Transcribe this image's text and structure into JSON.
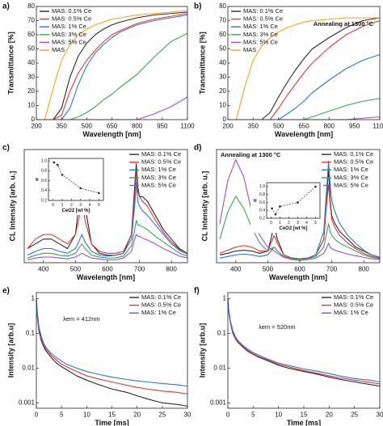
{
  "chart_data": [
    {
      "type": "line",
      "panel_label": "a)",
      "xlabel": "Wavelength [nm]",
      "ylabel": "Transmittance [%]",
      "xlim": [
        200,
        1100
      ],
      "xticks": [
        200,
        350,
        500,
        650,
        800,
        950,
        1100
      ],
      "ylim": [
        0,
        80
      ],
      "yticks": [
        0,
        10,
        20,
        30,
        40,
        50,
        60,
        70,
        80
      ],
      "legend": "upper left",
      "x": [
        200,
        250,
        300,
        350,
        400,
        450,
        500,
        550,
        600,
        650,
        700,
        800,
        900,
        1000,
        1100
      ],
      "series": [
        {
          "name": "MAS: 0.1% Ce",
          "color": "#2b2b2b",
          "values": [
            0,
            0,
            0,
            8,
            30,
            45,
            54,
            60,
            64,
            67,
            69,
            72,
            74,
            75,
            76
          ]
        },
        {
          "name": "MAS: 0.5% Ce",
          "color": "#e03a33",
          "values": [
            0,
            0,
            0,
            3,
            20,
            33,
            42,
            49,
            55,
            60,
            63,
            68,
            71,
            73,
            75
          ]
        },
        {
          "name": "MAS: 1% Ce",
          "color": "#2b78d4",
          "values": [
            0,
            0,
            0,
            0,
            8,
            25,
            38,
            47,
            53,
            58,
            62,
            67,
            70,
            72,
            74
          ]
        },
        {
          "name": "MAS: 3% Ce",
          "color": "#35a852",
          "values": [
            0,
            0,
            0,
            0,
            0,
            2,
            5,
            9,
            14,
            18,
            23,
            32,
            44,
            55,
            61
          ]
        },
        {
          "name": "MAS: 5% Ce",
          "color": "#9b4fd8",
          "values": [
            0,
            0,
            0,
            0,
            0,
            0,
            0,
            0,
            0,
            0,
            0,
            0,
            4,
            9,
            16
          ]
        },
        {
          "name": "MAS",
          "color": "#f2a51a",
          "values": [
            0,
            0,
            22,
            42,
            53,
            60,
            64,
            67,
            69,
            71,
            72,
            74,
            75,
            76,
            77
          ]
        }
      ]
    },
    {
      "type": "line",
      "panel_label": "b)",
      "annotation": "Annealing at 1300 °C",
      "xlabel": "Wavelength [nm]",
      "ylabel": "Transmittance [%]",
      "xlim": [
        200,
        1100
      ],
      "xticks": [
        200,
        350,
        500,
        650,
        800,
        950,
        1100
      ],
      "ylim": [
        0,
        80
      ],
      "yticks": [
        0,
        10,
        20,
        30,
        40,
        50,
        60,
        70,
        80
      ],
      "legend": "upper left",
      "x": [
        200,
        250,
        300,
        350,
        400,
        450,
        500,
        550,
        600,
        650,
        700,
        800,
        900,
        1000,
        1100
      ],
      "series": [
        {
          "name": "MAS: 0.1% Ce",
          "color": "#2b2b2b",
          "values": [
            0,
            0,
            0,
            0,
            0,
            5,
            16,
            26,
            35,
            43,
            50,
            58,
            65,
            70,
            72
          ]
        },
        {
          "name": "MAS: 0.5% Ce",
          "color": "#e03a33",
          "values": [
            0,
            0,
            0,
            0,
            0,
            0,
            8,
            17,
            25,
            33,
            40,
            51,
            60,
            66,
            70
          ]
        },
        {
          "name": "MAS: 1% Ce",
          "color": "#2b78d4",
          "values": [
            0,
            0,
            0,
            0,
            0,
            0,
            0,
            4,
            8,
            13,
            19,
            28,
            36,
            42,
            46
          ]
        },
        {
          "name": "MAS: 3% Ce",
          "color": "#35a852",
          "values": [
            0,
            0,
            0,
            0,
            0,
            0,
            0,
            0,
            0,
            0,
            2,
            6,
            10,
            13,
            15
          ]
        },
        {
          "name": "MAS: 5% Ce",
          "color": "#9b4fd8",
          "values": [
            0,
            0,
            0,
            0,
            0,
            0,
            0,
            0,
            0,
            0,
            0,
            0,
            0,
            1,
            2
          ]
        },
        {
          "name": "MAS",
          "color": "#f2a51a",
          "values": [
            0,
            0,
            23,
            42,
            52,
            58,
            62,
            65,
            67,
            69,
            70,
            71,
            72,
            72,
            72
          ]
        }
      ]
    },
    {
      "type": "line",
      "panel_label": "c)",
      "xlabel": "Wavelength [nm]",
      "ylabel": "CL Intensity [arb. u.]",
      "xlim": [
        340,
        850
      ],
      "xticks": [
        400,
        500,
        600,
        700,
        800
      ],
      "ylim": [
        0,
        12
      ],
      "legend": "upper right",
      "x": [
        350,
        375,
        400,
        425,
        450,
        475,
        500,
        510,
        520,
        530,
        550,
        575,
        600,
        625,
        650,
        675,
        685,
        690,
        695,
        700,
        710,
        725,
        750,
        775,
        800,
        825,
        850
      ],
      "series": [
        {
          "name": "MAS: 0.1% Ce",
          "color": "#2b2b2b",
          "values": [
            1.5,
            2,
            2.5,
            2.5,
            2,
            1.5,
            3,
            6,
            9,
            6,
            2,
            1,
            0.8,
            0.8,
            1,
            3,
            8,
            10.5,
            8,
            7,
            7,
            6.5,
            5,
            3.5,
            2.5,
            1.5,
            1
          ]
        },
        {
          "name": "MAS: 0.5% Ce",
          "color": "#e03a33",
          "values": [
            1.5,
            2.5,
            3,
            3,
            2.5,
            2,
            3,
            4.5,
            6.5,
            4.5,
            2,
            1.2,
            1,
            1,
            1.2,
            3,
            7,
            9.5,
            7.5,
            7,
            6.5,
            6,
            4.5,
            3.2,
            2.2,
            1.4,
            1
          ]
        },
        {
          "name": "MAS: 1% Ce",
          "color": "#2b78d4",
          "values": [
            0.8,
            1.2,
            1.5,
            1.5,
            1.2,
            1,
            1.5,
            2.2,
            3,
            2.2,
            1.2,
            0.8,
            0.7,
            0.8,
            1,
            2.5,
            6,
            8.5,
            6.5,
            6,
            5.5,
            5,
            4,
            3,
            2,
            1.3,
            0.9
          ]
        },
        {
          "name": "MAS: 3% Ce",
          "color": "#35a852",
          "values": [
            0.5,
            0.8,
            1,
            1,
            0.8,
            0.7,
            1,
            1.5,
            2,
            1.5,
            0.8,
            0.6,
            0.5,
            0.5,
            0.7,
            1.8,
            3.5,
            4.5,
            4,
            4,
            3.8,
            3.5,
            2.8,
            2.2,
            1.6,
            1,
            0.7
          ]
        },
        {
          "name": "MAS: 5% Ce",
          "color": "#9b4fd8",
          "values": [
            0.3,
            0.5,
            0.6,
            0.6,
            0.5,
            0.4,
            0.6,
            0.8,
            1,
            0.8,
            0.5,
            0.4,
            0.3,
            0.3,
            0.5,
            1.2,
            2.5,
            3,
            2.8,
            2.8,
            2.6,
            2.4,
            2,
            1.5,
            1.1,
            0.7,
            0.5
          ]
        }
      ]
    },
    {
      "type": "line",
      "inset": true,
      "markers": true,
      "line_style": "dashed",
      "xlabel": "CeO2 [wt %]",
      "ylabel": "α",
      "xlim": [
        -0.5,
        5.5
      ],
      "xticks": [
        0,
        1,
        2,
        3,
        4,
        5
      ],
      "ylim": [
        0.2,
        1.05
      ],
      "yticks": [
        0.2,
        0.4,
        0.6,
        0.8,
        {
          "value": 1,
          "label": "1.0"
        }
      ],
      "x": [
        0.1,
        0.5,
        1,
        3,
        5
      ],
      "values": [
        0.97,
        0.92,
        0.72,
        0.45,
        0.35
      ],
      "color": "#2b2b2b"
    },
    {
      "type": "line",
      "panel_label": "d)",
      "annotation": "Annealing at 1300 °C",
      "xlabel": "Wavelength [nm]",
      "ylabel": "CL Intensity [arb. u.]",
      "xlim": [
        340,
        850
      ],
      "xticks": [
        400,
        500,
        600,
        700,
        800
      ],
      "ylim": [
        0,
        14.5
      ],
      "legend": "upper right",
      "x": [
        350,
        375,
        400,
        425,
        450,
        475,
        500,
        510,
        520,
        530,
        550,
        575,
        600,
        625,
        650,
        675,
        685,
        690,
        695,
        700,
        710,
        725,
        750,
        775,
        800,
        825,
        850
      ],
      "series": [
        {
          "name": "MAS: 0.1% Ce",
          "color": "#2b2b2b",
          "values": [
            1,
            1.2,
            1.5,
            1.6,
            1.5,
            1.2,
            1.5,
            3,
            5,
            3,
            1,
            0.6,
            0.5,
            0.6,
            1,
            3,
            9,
            12,
            8,
            6,
            5,
            4,
            3,
            2,
            1.5,
            1,
            0.7
          ]
        },
        {
          "name": "MAS: 0.5% Ce",
          "color": "#e03a33",
          "values": [
            1.2,
            1.6,
            2,
            2.2,
            2,
            1.5,
            1.5,
            2.5,
            3.5,
            2.5,
            1,
            0.6,
            0.5,
            0.6,
            1,
            3,
            8,
            10,
            7.5,
            5.5,
            4.5,
            3.5,
            2.5,
            1.8,
            1.2,
            0.8,
            0.6
          ]
        },
        {
          "name": "MAS: 1% Ce",
          "color": "#2b78d4",
          "values": [
            0.6,
            0.8,
            1,
            1.1,
            1,
            0.8,
            1,
            1.5,
            2,
            1.5,
            0.8,
            0.5,
            0.4,
            0.5,
            1,
            4,
            10,
            13,
            10,
            8,
            6.5,
            5,
            3.5,
            2.5,
            1.6,
            1,
            0.7
          ]
        },
        {
          "name": "MAS: 3% Ce",
          "color": "#35a852",
          "values": [
            3,
            6.5,
            8.5,
            7,
            4.5,
            2.5,
            1.5,
            1.8,
            2,
            1.5,
            0.8,
            0.5,
            0.4,
            0.5,
            0.8,
            2,
            4,
            5,
            4,
            3.5,
            3,
            2.5,
            2,
            1.5,
            1,
            0.7,
            0.5
          ]
        },
        {
          "name": "MAS: 5% Ce",
          "color": "#9b4fd8",
          "values": [
            5,
            10.5,
            13.2,
            11,
            6.5,
            3.5,
            2,
            1.8,
            1.5,
            1.2,
            0.7,
            0.4,
            0.3,
            0.4,
            0.6,
            1.2,
            2,
            2.5,
            2,
            1.8,
            1.6,
            1.4,
            1.1,
            0.9,
            0.7,
            0.5,
            0.4
          ]
        }
      ]
    },
    {
      "type": "line",
      "inset": true,
      "markers": true,
      "line_style": "dashed",
      "xlabel": "CeO2 [wt %]",
      "ylabel": "α",
      "xlim": [
        -0.5,
        5.5
      ],
      "xticks": [
        0,
        1,
        2,
        3,
        4,
        5
      ],
      "ylim": [
        0.2,
        1.1
      ],
      "yticks": [
        0.2,
        0.4,
        0.6,
        0.8,
        {
          "value": 1,
          "label": "1.0"
        }
      ],
      "x": [
        0.1,
        0.5,
        1,
        3,
        5
      ],
      "values": [
        0.45,
        0.3,
        0.5,
        0.6,
        1.0
      ],
      "color": "#2b2b2b"
    },
    {
      "type": "line",
      "panel_label": "e)",
      "annotation": "λem = 412nm",
      "xlabel": "Time [ms]",
      "ylabel": "Intensity [arb.u]",
      "xlim": [
        0,
        30
      ],
      "xticks": [
        0,
        5,
        10,
        15,
        20,
        25,
        30
      ],
      "ylim": [
        0.0007,
        1.5
      ],
      "yticks": [
        0.001,
        0.01,
        0.1,
        1
      ],
      "log_y": true,
      "legend": "upper right",
      "x": [
        0,
        0.2,
        0.5,
        1,
        1.5,
        2,
        3,
        4,
        5,
        6,
        8,
        10,
        12,
        15,
        18,
        20,
        22,
        25,
        28,
        30
      ],
      "series": [
        {
          "name": "MAS: 0.1% Ce",
          "color": "#2b2b2b",
          "values": [
            1,
            0.3,
            0.12,
            0.06,
            0.04,
            0.03,
            0.02,
            0.014,
            0.011,
            0.009,
            0.006,
            0.0045,
            0.0035,
            0.0025,
            0.002,
            0.0016,
            0.0013,
            0.001,
            0.0009,
            0.0008
          ]
        },
        {
          "name": "MAS: 0.5% Ce",
          "color": "#e03a33",
          "values": [
            1,
            0.35,
            0.14,
            0.07,
            0.045,
            0.034,
            0.023,
            0.017,
            0.013,
            0.011,
            0.008,
            0.006,
            0.005,
            0.004,
            0.0032,
            0.0028,
            0.0025,
            0.0022,
            0.002,
            0.0018
          ]
        },
        {
          "name": "MAS: 1% Ce",
          "color": "#2b78d4",
          "values": [
            1,
            0.4,
            0.16,
            0.08,
            0.05,
            0.038,
            0.026,
            0.02,
            0.016,
            0.013,
            0.01,
            0.008,
            0.0068,
            0.0055,
            0.0047,
            0.0043,
            0.004,
            0.0036,
            0.0033,
            0.003
          ]
        }
      ]
    },
    {
      "type": "line",
      "panel_label": "f)",
      "annotation": "λem = 520nm",
      "xlabel": "Time [ms]",
      "ylabel": "Intensity [arb.u]",
      "xlim": [
        0,
        30
      ],
      "xticks": [
        0,
        5,
        10,
        15,
        20,
        25,
        30
      ],
      "ylim": [
        0.0007,
        1.5
      ],
      "yticks": [
        0.001,
        0.01,
        0.1,
        1
      ],
      "log_y": true,
      "legend": "upper right",
      "x": [
        0,
        0.2,
        0.5,
        1,
        1.5,
        2,
        3,
        4,
        5,
        6,
        8,
        10,
        12,
        15,
        18,
        20,
        22,
        25,
        28,
        30
      ],
      "series": [
        {
          "name": "MAS: 0.1% Ce",
          "color": "#2b2b2b",
          "values": [
            1,
            0.4,
            0.2,
            0.1,
            0.07,
            0.055,
            0.04,
            0.03,
            0.025,
            0.021,
            0.016,
            0.012,
            0.01,
            0.008,
            0.0065,
            0.0055,
            0.0048,
            0.004,
            0.0034,
            0.003
          ]
        },
        {
          "name": "MAS: 0.5% Ce",
          "color": "#e03a33",
          "values": [
            1,
            0.42,
            0.21,
            0.11,
            0.075,
            0.058,
            0.042,
            0.032,
            0.026,
            0.022,
            0.017,
            0.013,
            0.011,
            0.0085,
            0.007,
            0.006,
            0.0053,
            0.0045,
            0.0039,
            0.0035
          ]
        },
        {
          "name": "MAS: 1% Ce",
          "color": "#2b78d4",
          "values": [
            1,
            0.45,
            0.23,
            0.12,
            0.08,
            0.062,
            0.045,
            0.035,
            0.028,
            0.024,
            0.018,
            0.014,
            0.012,
            0.0095,
            0.008,
            0.007,
            0.006,
            0.005,
            0.0045,
            0.004
          ]
        }
      ]
    }
  ]
}
